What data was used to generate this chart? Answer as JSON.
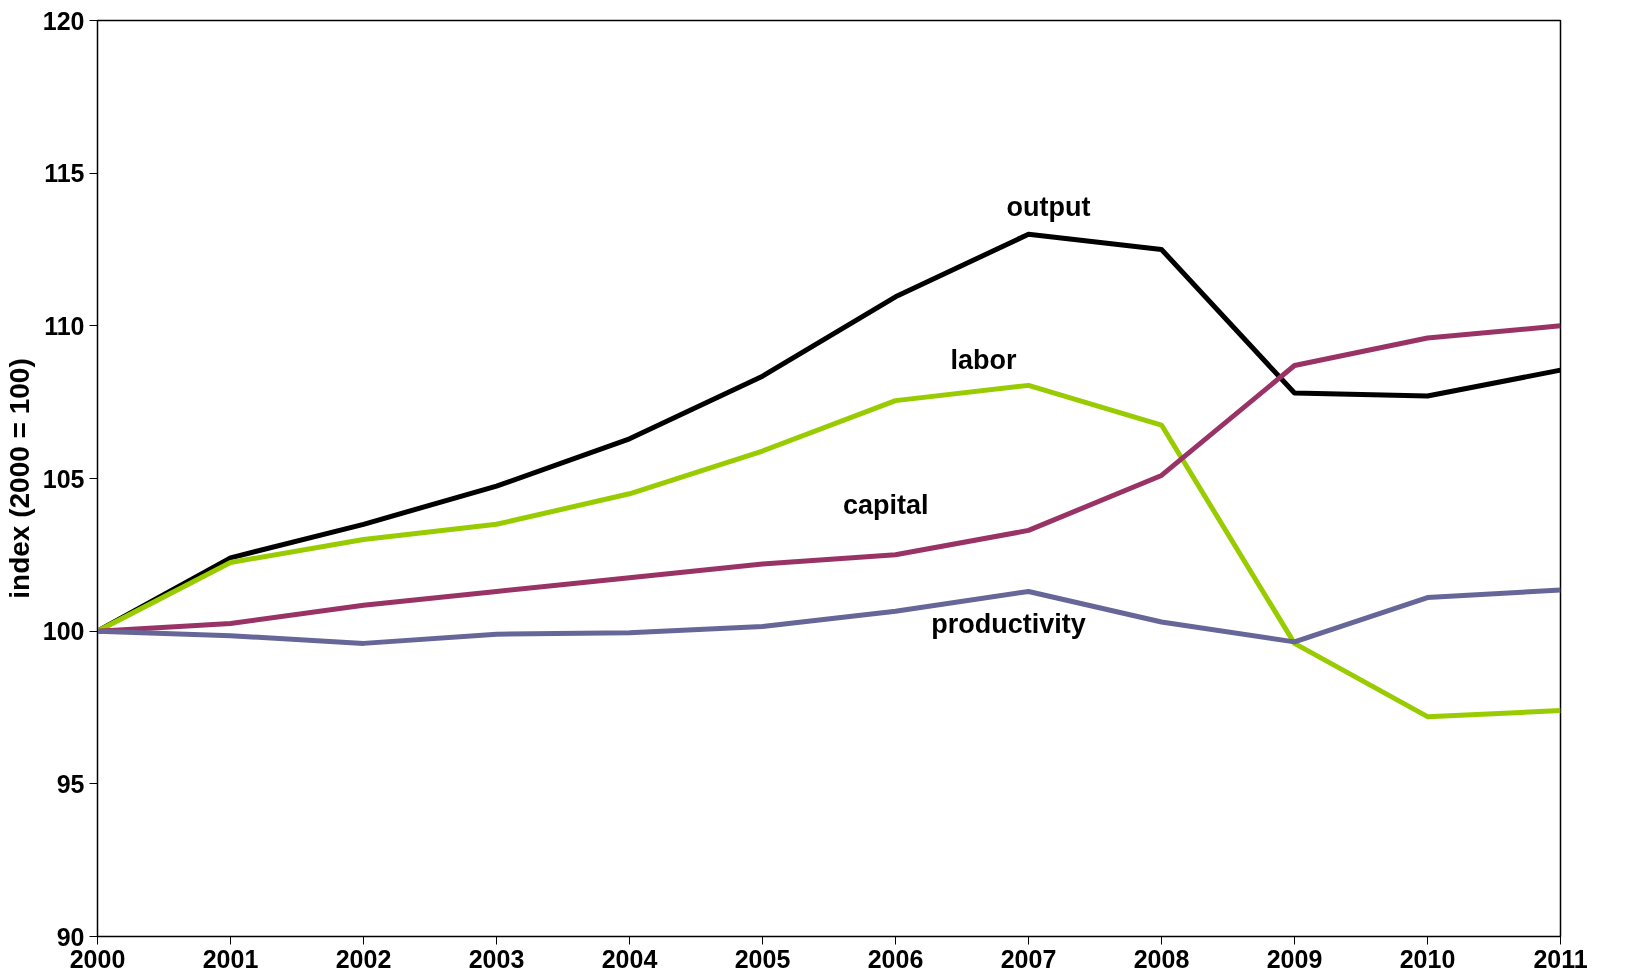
{
  "chart_data": {
    "type": "line",
    "ylabel": "index (2000 = 100)",
    "x": [
      2000,
      2001,
      2002,
      2003,
      2004,
      2005,
      2006,
      2007,
      2008,
      2009,
      2010,
      2011
    ],
    "xlim": [
      2000,
      2011
    ],
    "xticks": [
      2000,
      2001,
      2002,
      2003,
      2004,
      2005,
      2006,
      2007,
      2008,
      2009,
      2010,
      2011
    ],
    "ylim": [
      90,
      120
    ],
    "yticks": [
      90,
      95,
      100,
      105,
      110,
      115,
      120
    ],
    "grid": false,
    "marker": "none",
    "line_style": "solid",
    "series": [
      {
        "name": "output",
        "color": "#000000",
        "values": [
          100,
          102.4,
          103.5,
          104.75,
          106.3,
          108.35,
          110.95,
          113.0,
          112.5,
          107.8,
          107.7,
          108.55
        ]
      },
      {
        "name": "labor",
        "color": "#99cc00",
        "values": [
          100,
          102.25,
          103.0,
          103.5,
          104.5,
          105.9,
          107.55,
          108.05,
          106.75,
          99.6,
          97.2,
          97.4
        ]
      },
      {
        "name": "capital",
        "color": "#993366",
        "values": [
          100,
          100.25,
          100.85,
          101.3,
          101.75,
          102.2,
          102.5,
          103.3,
          105.1,
          108.7,
          109.6,
          110.0
        ]
      },
      {
        "name": "productivity",
        "color": "#666699",
        "values": [
          100,
          99.85,
          99.6,
          99.9,
          99.95,
          100.15,
          100.65,
          101.3,
          100.3,
          99.65,
          101.1,
          101.35
        ]
      }
    ]
  }
}
